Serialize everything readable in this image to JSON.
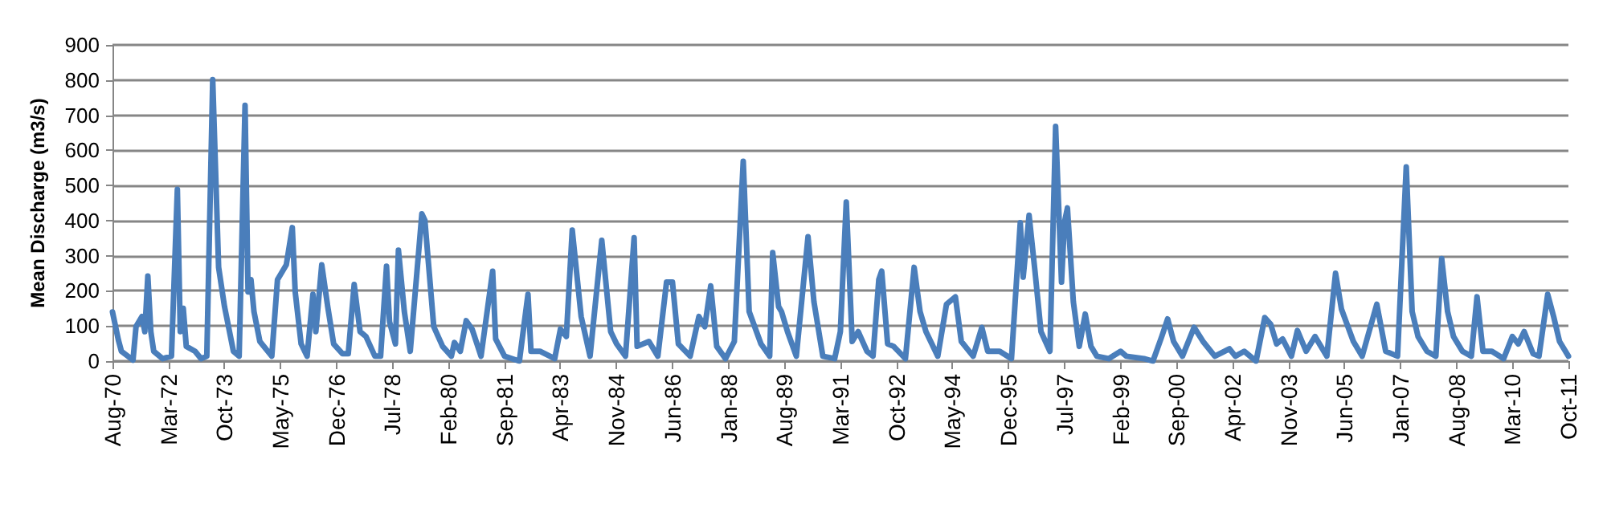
{
  "chart_data": {
    "type": "line",
    "ylabel": "Mean Discharge (m3/s)",
    "xlim": [
      "1970-08",
      "2011-10"
    ],
    "xticks": [
      {
        "value": "1970-08",
        "label": "Aug-70"
      },
      {
        "value": "1972-03",
        "label": "Mar-72"
      },
      {
        "value": "1973-10",
        "label": "Oct-73"
      },
      {
        "value": "1975-05",
        "label": "May-75"
      },
      {
        "value": "1976-12",
        "label": "Dec-76"
      },
      {
        "value": "1978-07",
        "label": "Jul-78"
      },
      {
        "value": "1980-02",
        "label": "Feb-80"
      },
      {
        "value": "1981-09",
        "label": "Sep-81"
      },
      {
        "value": "1983-04",
        "label": "Apr-83"
      },
      {
        "value": "1984-11",
        "label": "Nov-84"
      },
      {
        "value": "1986-06",
        "label": "Jun-86"
      },
      {
        "value": "1988-01",
        "label": "Jan-88"
      },
      {
        "value": "1989-08",
        "label": "Aug-89"
      },
      {
        "value": "1991-03",
        "label": "Mar-91"
      },
      {
        "value": "1992-10",
        "label": "Oct-92"
      },
      {
        "value": "1994-05",
        "label": "May-94"
      },
      {
        "value": "1995-12",
        "label": "Dec-95"
      },
      {
        "value": "1997-07",
        "label": "Jul-97"
      },
      {
        "value": "1999-02",
        "label": "Feb-99"
      },
      {
        "value": "2000-09",
        "label": "Sep-00"
      },
      {
        "value": "2002-04",
        "label": "Apr-02"
      },
      {
        "value": "2003-11",
        "label": "Nov-03"
      },
      {
        "value": "2005-06",
        "label": "Jun-05"
      },
      {
        "value": "2007-01",
        "label": "Jan-07"
      },
      {
        "value": "2008-08",
        "label": "Aug-08"
      },
      {
        "value": "2010-03",
        "label": "Mar-10"
      },
      {
        "value": "2011-10",
        "label": "Oct-11"
      }
    ],
    "ylim": [
      0,
      900
    ],
    "yticks": [
      0,
      100,
      200,
      300,
      400,
      500,
      600,
      700,
      800,
      900
    ],
    "grid": "y",
    "marker": "none",
    "line_style": "solid",
    "series": [
      {
        "color": "#4a7ebb",
        "x": [
          "1970-08",
          "1970-10",
          "1970-11",
          "1971-03",
          "1971-04",
          "1971-06",
          "1971-07",
          "1971-08",
          "1971-09",
          "1971-10",
          "1972-01",
          "1972-04",
          "1972-06",
          "1972-07",
          "1972-08",
          "1972-09",
          "1972-12",
          "1973-02",
          "1973-04",
          "1973-06",
          "1973-08",
          "1973-10",
          "1974-01",
          "1974-03",
          "1974-05",
          "1974-06",
          "1974-07",
          "1974-08",
          "1974-10",
          "1975-02",
          "1975-04",
          "1975-07",
          "1975-09",
          "1975-10",
          "1975-12",
          "1976-02",
          "1976-04",
          "1976-05",
          "1976-07",
          "1976-09",
          "1976-11",
          "1977-02",
          "1977-04",
          "1977-06",
          "1977-08",
          "1977-10",
          "1978-01",
          "1978-03",
          "1978-05",
          "1978-06",
          "1978-08",
          "1978-09",
          "1978-11",
          "1979-01",
          "1979-05",
          "1979-06",
          "1979-09",
          "1979-12",
          "1980-03",
          "1980-04",
          "1980-06",
          "1980-08",
          "1980-10",
          "1981-01",
          "1981-05",
          "1981-06",
          "1981-09",
          "1982-02",
          "1982-05",
          "1982-06",
          "1982-09",
          "1983-02",
          "1983-04",
          "1983-06",
          "1983-08",
          "1983-11",
          "1984-02",
          "1984-06",
          "1984-09",
          "1984-11",
          "1985-02",
          "1985-05",
          "1985-06",
          "1985-10",
          "1986-01",
          "1986-04",
          "1986-06",
          "1986-08",
          "1986-12",
          "1987-03",
          "1987-05",
          "1987-07",
          "1987-09",
          "1987-12",
          "1988-03",
          "1988-06",
          "1988-08",
          "1988-12",
          "1989-03",
          "1989-04",
          "1989-06",
          "1989-07",
          "1989-09",
          "1989-12",
          "1990-04",
          "1990-06",
          "1990-09",
          "1991-01",
          "1991-03",
          "1991-05",
          "1991-07",
          "1991-09",
          "1991-12",
          "1992-02",
          "1992-04",
          "1992-05",
          "1992-07",
          "1992-09",
          "1993-01",
          "1993-04",
          "1993-06",
          "1993-08",
          "1993-12",
          "1994-03",
          "1994-06",
          "1994-08",
          "1994-12",
          "1995-03",
          "1995-05",
          "1995-09",
          "1996-01",
          "1996-04",
          "1996-05",
          "1996-07",
          "1996-09",
          "1996-11",
          "1997-02",
          "1997-04",
          "1997-06",
          "1997-07",
          "1997-08",
          "1997-10",
          "1997-12",
          "1998-02",
          "1998-04",
          "1998-06",
          "1998-10",
          "1999-02",
          "1999-04",
          "1999-10",
          "2000-01",
          "2000-04",
          "2000-06",
          "2000-08",
          "2000-11",
          "2001-03",
          "2001-06",
          "2001-10",
          "2002-03",
          "2002-05",
          "2002-08",
          "2002-12",
          "2003-03",
          "2003-05",
          "2003-07",
          "2003-09",
          "2003-12",
          "2004-02",
          "2004-05",
          "2004-08",
          "2004-12",
          "2005-03",
          "2005-05",
          "2005-09",
          "2005-12",
          "2006-05",
          "2006-08",
          "2006-12",
          "2007-03",
          "2007-05",
          "2007-07",
          "2007-10",
          "2008-01",
          "2008-03",
          "2008-05",
          "2008-07",
          "2008-10",
          "2009-01",
          "2009-03",
          "2009-05",
          "2009-08",
          "2009-12",
          "2010-03",
          "2010-05",
          "2010-07",
          "2010-10",
          "2010-12",
          "2011-03",
          "2011-05",
          "2011-07",
          "2011-10"
        ],
        "values": [
          140,
          60,
          28,
          3,
          98,
          127,
          84,
          242,
          84,
          28,
          7,
          14,
          489,
          84,
          150,
          42,
          28,
          7,
          14,
          801,
          267,
          155,
          28,
          14,
          728,
          197,
          232,
          141,
          56,
          14,
          232,
          274,
          380,
          197,
          49,
          14,
          190,
          84,
          274,
          155,
          49,
          21,
          21,
          218,
          84,
          70,
          14,
          14,
          270,
          112,
          49,
          316,
          141,
          28,
          419,
          401,
          98,
          42,
          14,
          53,
          28,
          115,
          91,
          14,
          256,
          63,
          14,
          0,
          190,
          28,
          28,
          7,
          91,
          70,
          373,
          127,
          14,
          344,
          84,
          49,
          14,
          351,
          42,
          56,
          14,
          225,
          225,
          49,
          14,
          127,
          98,
          214,
          42,
          7,
          56,
          569,
          141,
          49,
          14,
          309,
          155,
          141,
          84,
          14,
          354,
          169,
          14,
          7,
          84,
          453,
          56,
          84,
          28,
          14,
          232,
          256,
          49,
          42,
          7,
          267,
          141,
          84,
          14,
          162,
          183,
          56,
          14,
          96,
          28,
          28,
          7,
          394,
          239,
          415,
          253,
          84,
          28,
          668,
          225,
          394,
          436,
          169,
          42,
          134,
          42,
          14,
          7,
          28,
          14,
          7,
          0,
          70,
          120,
          56,
          14,
          96,
          56,
          14,
          35,
          14,
          28,
          0,
          124,
          105,
          49,
          63,
          14,
          87,
          28,
          70,
          14,
          250,
          148,
          56,
          14,
          162,
          28,
          14,
          553,
          141,
          70,
          28,
          14,
          292,
          141,
          70,
          28,
          14,
          183,
          28,
          28,
          7,
          70,
          49,
          84,
          21,
          14,
          190,
          127,
          56,
          14
        ]
      }
    ]
  }
}
